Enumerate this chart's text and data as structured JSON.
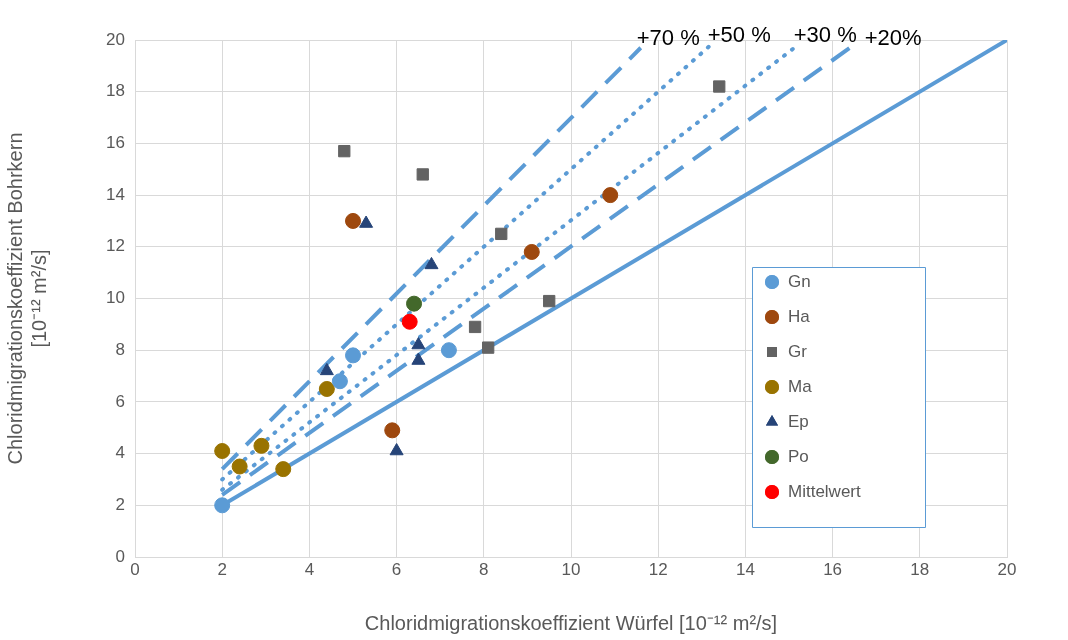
{
  "chart_data": {
    "type": "scatter",
    "xlabel": "Chloridmigrationskoeffizient Würfel [10⁻¹² m²/s]",
    "ylabel": "Chloridmigrationskoeffizient Bohrkern\n[10⁻¹² m²/s]",
    "xlim": [
      0,
      20
    ],
    "ylim": [
      0,
      20
    ],
    "xticks": [
      0,
      2,
      4,
      6,
      8,
      10,
      12,
      14,
      16,
      18,
      20
    ],
    "yticks": [
      0,
      2,
      4,
      6,
      8,
      10,
      12,
      14,
      16,
      18,
      20
    ],
    "grid": true,
    "legend": "bottom right",
    "series": [
      {
        "type": "line",
        "color": "#5b9bd5",
        "line_style": "solid",
        "marker": "none",
        "x": [
          2,
          20
        ],
        "values": [
          2,
          20
        ]
      },
      {
        "type": "line",
        "color": "#5b9bd5",
        "line_style": "dashed",
        "marker": "none",
        "x": [
          2,
          16.4
        ],
        "values": [
          2.4,
          19.7
        ]
      },
      {
        "type": "line",
        "color": "#5b9bd5",
        "line_style": "dotted",
        "marker": "none",
        "x": [
          2,
          15.2
        ],
        "values": [
          2.6,
          19.8
        ]
      },
      {
        "type": "line",
        "color": "#5b9bd5",
        "line_style": "dotted",
        "marker": "none",
        "x": [
          2,
          13.2
        ],
        "values": [
          3,
          19.8
        ]
      },
      {
        "type": "line",
        "color": "#5b9bd5",
        "line_style": "dashed",
        "marker": "none",
        "x": [
          2,
          11.6
        ],
        "values": [
          3.4,
          19.7
        ]
      },
      {
        "name": "Gn",
        "color": "#5b9bd5",
        "marker": "circle",
        "x": [
          2,
          5.0,
          4.7,
          7.2
        ],
        "values": [
          2,
          7.8,
          6.8,
          8.0
        ]
      },
      {
        "name": "Ha",
        "color": "#9e480e",
        "marker": "circle",
        "x": [
          5.0,
          9.1,
          10.9,
          5.9
        ],
        "values": [
          13.0,
          11.8,
          14.0,
          4.9
        ]
      },
      {
        "name": "Gr",
        "color": "#636363",
        "marker": "square",
        "x": [
          4.8,
          6.6,
          8.4,
          9.5,
          7.8,
          8.1,
          13.4
        ],
        "values": [
          15.7,
          14.8,
          12.5,
          9.9,
          8.9,
          8.1,
          18.2
        ]
      },
      {
        "name": "Ma",
        "color": "#997300",
        "marker": "circle",
        "x": [
          2.0,
          2.4,
          2.9,
          3.4,
          4.4
        ],
        "values": [
          4.1,
          3.5,
          4.3,
          3.4,
          6.5
        ]
      },
      {
        "name": "Ep",
        "color": "#264478",
        "marker": "triangle",
        "x": [
          5.3,
          6.8,
          4.4,
          6.5,
          6.5,
          6.0
        ],
        "values": [
          12.9,
          11.3,
          7.2,
          8.2,
          7.6,
          4.1
        ]
      },
      {
        "name": "Po",
        "color": "#43682b",
        "marker": "circle",
        "x": [
          6.4
        ],
        "values": [
          9.8
        ]
      },
      {
        "name": "Mittelwert",
        "color": "#ff0000",
        "marker": "circle",
        "x": [
          6.3
        ],
        "values": [
          9.1
        ]
      }
    ],
    "annotations": [
      {
        "text": "+70 %",
        "x": 11.6,
        "y": 19.7
      },
      {
        "text": "+50 %",
        "x": 13.2,
        "y": 19.8
      },
      {
        "text": "+30 %",
        "x": 15.2,
        "y": 19.8
      },
      {
        "text": "+20%",
        "x": 16.4,
        "y": 19.7
      }
    ]
  }
}
